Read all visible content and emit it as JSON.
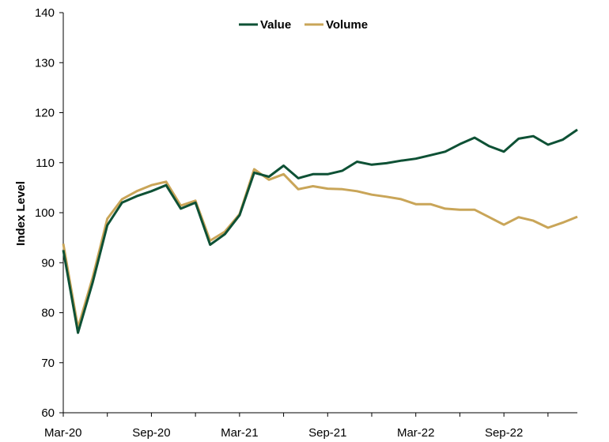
{
  "chart_data": {
    "type": "line",
    "title": "",
    "xlabel": "",
    "ylabel": "Index Level",
    "ylim": [
      60,
      140
    ],
    "yticks": [
      60,
      70,
      80,
      90,
      100,
      110,
      120,
      130,
      140
    ],
    "x_tick_labels": [
      "Mar-20",
      "Sep-20",
      "Mar-21",
      "Sep-21",
      "Mar-22",
      "Sep-22"
    ],
    "x": [
      "2020-03",
      "2020-04",
      "2020-05",
      "2020-06",
      "2020-07",
      "2020-08",
      "2020-09",
      "2020-10",
      "2020-11",
      "2020-12",
      "2021-01",
      "2021-02",
      "2021-03",
      "2021-04",
      "2021-05",
      "2021-06",
      "2021-07",
      "2021-08",
      "2021-09",
      "2021-10",
      "2021-11",
      "2021-12",
      "2022-01",
      "2022-02",
      "2022-03",
      "2022-04",
      "2022-05",
      "2022-06",
      "2022-07",
      "2022-08",
      "2022-09",
      "2022-10",
      "2022-11",
      "2022-12",
      "2023-01",
      "2023-02"
    ],
    "grid": false,
    "legend_position": "top-center",
    "series": [
      {
        "name": "Value",
        "color": "#0e5135",
        "values": [
          92.5,
          76.0,
          86.0,
          97.5,
          102.0,
          103.3,
          104.3,
          105.5,
          100.8,
          102.0,
          93.6,
          95.7,
          99.5,
          108.0,
          107.2,
          109.4,
          106.9,
          107.7,
          107.7,
          108.4,
          110.2,
          109.6,
          109.9,
          110.4,
          110.8,
          111.5,
          112.2,
          113.7,
          115.0,
          113.3,
          112.2,
          114.8,
          115.3,
          113.6,
          114.6,
          116.6
        ]
      },
      {
        "name": "Volume",
        "color": "#c9a558",
        "values": [
          93.8,
          77.0,
          87.0,
          98.8,
          102.7,
          104.3,
          105.5,
          106.2,
          101.4,
          102.4,
          94.4,
          96.2,
          99.7,
          108.7,
          106.6,
          107.7,
          104.7,
          105.3,
          104.8,
          104.7,
          104.3,
          103.6,
          103.2,
          102.7,
          101.7,
          101.7,
          100.8,
          100.6,
          100.6,
          99.1,
          97.6,
          99.1,
          98.4,
          97.0,
          98.0,
          99.2
        ]
      }
    ]
  }
}
